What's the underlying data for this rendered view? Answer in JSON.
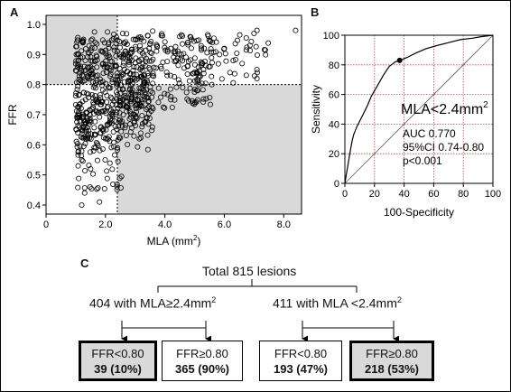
{
  "panels": {
    "a": "A",
    "b": "B",
    "c": "C"
  },
  "colors": {
    "shade": "#d9d9d9",
    "roc_grid": "#b04a4a",
    "axis": "#000000"
  },
  "chart_data": [
    {
      "type": "scatter",
      "panel": "A",
      "xlabel": "MLA (mm²)",
      "ylabel": "FFR",
      "xlim": [
        0,
        8.6
      ],
      "ylim": [
        0.37,
        1.03
      ],
      "xticks": [
        0,
        2.0,
        4.0,
        6.0,
        8.0
      ],
      "xtick_labels": [
        "0",
        "2.0",
        "4.0",
        "6.0",
        "8.0"
      ],
      "yticks": [
        0.4,
        0.5,
        0.6,
        0.7,
        0.8,
        0.9,
        1.0
      ],
      "ytick_labels": [
        "0.4",
        "0.5",
        "0.6",
        "0.7",
        "0.8",
        "0.9",
        "1.0"
      ],
      "cutoffs": {
        "mla": 2.4,
        "ffr": 0.8
      },
      "shaded_regions": [
        {
          "x": [
            0,
            2.4
          ],
          "y": [
            0.8,
            1.03
          ]
        },
        {
          "x": [
            2.4,
            8.6
          ],
          "y": [
            0.37,
            0.8
          ]
        }
      ],
      "points": {
        "count": 815,
        "distribution": "dense cloud between MLA 1.0 and 5.5 mm² and FFR 0.6 to 0.97; sparse points down to FFR 0.4 at low MLA; few points out to MLA 8.4",
        "sample": [
          [
            1.2,
            0.4
          ],
          [
            1.3,
            0.44
          ],
          [
            1.8,
            0.41
          ],
          [
            1.2,
            0.55
          ],
          [
            1.5,
            0.52
          ],
          [
            1.6,
            0.58
          ],
          [
            2.0,
            0.62
          ],
          [
            2.4,
            0.59
          ],
          [
            1.4,
            0.62
          ],
          [
            2.6,
            0.7
          ],
          [
            3.0,
            0.73
          ],
          [
            3.6,
            0.72
          ],
          [
            4.2,
            0.76
          ],
          [
            3.3,
            0.76
          ],
          [
            5.1,
            0.78
          ],
          [
            4.6,
            0.79
          ],
          [
            6.3,
            0.88
          ],
          [
            6.6,
            0.87
          ],
          [
            7.0,
            0.97
          ],
          [
            7.1,
            0.98
          ],
          [
            8.4,
            0.98
          ],
          [
            6.0,
            0.92
          ],
          [
            5.6,
            0.94
          ],
          [
            4.5,
            0.96
          ]
        ]
      }
    },
    {
      "type": "line",
      "panel": "B",
      "xlabel": "100-Specificity",
      "ylabel": "Sensitivity",
      "xlim": [
        0,
        100
      ],
      "ylim": [
        0,
        100
      ],
      "xticks": [
        0,
        20,
        40,
        60,
        80,
        100
      ],
      "yticks": [
        0,
        20,
        40,
        60,
        80,
        100
      ],
      "grid": true,
      "series": [
        {
          "x": [
            0,
            1,
            2,
            3,
            4,
            5,
            6,
            8,
            10,
            12,
            15,
            18,
            22,
            26,
            30,
            34,
            37,
            42,
            48,
            55,
            62,
            70,
            78,
            86,
            92,
            100
          ],
          "y": [
            0,
            6,
            12,
            18,
            24,
            29,
            33,
            38,
            42,
            46,
            52,
            59,
            66,
            73,
            79,
            82,
            83,
            85,
            88,
            91,
            93,
            95,
            97,
            98,
            99,
            100
          ]
        }
      ],
      "reference_line": {
        "x": [
          0,
          100
        ],
        "y": [
          0,
          100
        ]
      },
      "marker": {
        "x": 37,
        "y": 83
      },
      "annotations": {
        "cutoff": "MLA<2.4mm",
        "cutoff_sup": "2",
        "auc": "AUC 0.770",
        "ci": "95%CI 0.74-0.80",
        "p": "p<0.001"
      }
    }
  ],
  "flow": {
    "total": "Total 815 lesions",
    "left_branch": "404 with MLA≥2.4mm",
    "right_branch": "411 with MLA <2.4mm",
    "sup": "2",
    "boxes": [
      {
        "line1": "FFR<0.80",
        "line2": "39 (10%)",
        "highlight": true
      },
      {
        "line1": "FFR≥0.80",
        "line2": "365 (90%)",
        "highlight": false
      },
      {
        "line1": "FFR<0.80",
        "line2": "193 (47%)",
        "highlight": false
      },
      {
        "line1": "FFR≥0.80",
        "line2": "218 (53%)",
        "highlight": true
      }
    ]
  }
}
